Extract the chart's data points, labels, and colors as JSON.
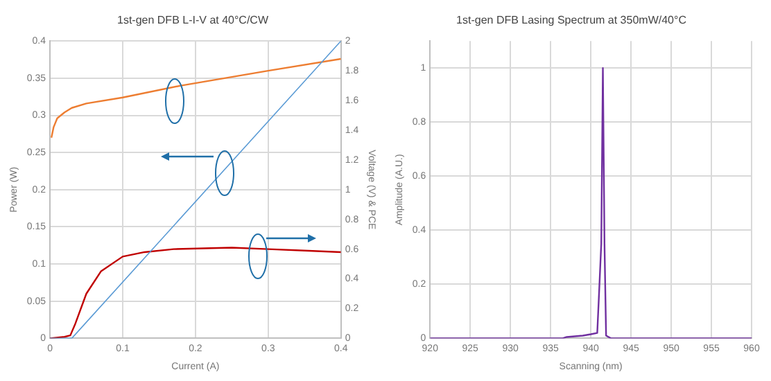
{
  "chart_data": [
    {
      "type": "line",
      "title": "1st-gen DFB L-I-V at 40°C/CW",
      "xlabel": "Current (A)",
      "ylabel": "Power (W)",
      "y2label": "Voltage (V) & PCE",
      "xlim": [
        0,
        0.4
      ],
      "xticks": [
        0,
        0.1,
        0.2,
        0.3,
        0.4
      ],
      "ylim": [
        0,
        0.4
      ],
      "yticks": [
        0,
        0.05,
        0.1,
        0.15,
        0.2,
        0.25,
        0.3,
        0.35,
        0.4
      ],
      "y2lim": [
        0,
        2
      ],
      "y2ticks": [
        0,
        0.2,
        0.4,
        0.6,
        0.8,
        1,
        1.2,
        1.4,
        1.6,
        1.8,
        2
      ],
      "grid": true,
      "legend": false,
      "marker": "none",
      "line_style": "solid",
      "series": [
        {
          "color": "#5b9bd5",
          "x": [
            0,
            0.03,
            0.4
          ],
          "values": [
            0,
            0,
            0.4
          ]
        },
        {
          "color": "#ed7d31",
          "axis": "y2",
          "x": [
            0.002,
            0.005,
            0.01,
            0.02,
            0.03,
            0.05,
            0.1,
            0.18,
            0.24,
            0.3,
            0.4
          ],
          "values": [
            1.35,
            1.42,
            1.48,
            1.52,
            1.55,
            1.58,
            1.62,
            1.7,
            1.75,
            1.8,
            1.88
          ]
        },
        {
          "color": "#c00000",
          "axis": "y2",
          "x": [
            0,
            0.02,
            0.028,
            0.035,
            0.05,
            0.07,
            0.1,
            0.13,
            0.17,
            0.25,
            0.3,
            0.35,
            0.4
          ],
          "values": [
            0,
            0.01,
            0.02,
            0.1,
            0.3,
            0.45,
            0.55,
            0.58,
            0.6,
            0.61,
            0.6,
            0.59,
            0.58
          ]
        }
      ]
    },
    {
      "type": "line",
      "title": "1st-gen DFB Lasing Spectrum at 350mW/40°C",
      "xlabel": "Scanning (nm)",
      "ylabel": "Amplitude (A.U.)",
      "xlim": [
        920,
        960
      ],
      "xticks": [
        920,
        925,
        930,
        935,
        940,
        945,
        950,
        955,
        960
      ],
      "ylim": [
        0,
        1.1
      ],
      "yticks": [
        0,
        0.2,
        0.4,
        0.6,
        0.8,
        1
      ],
      "grid": true,
      "legend": false,
      "marker": "none",
      "line_style": "solid",
      "series": [
        {
          "color": "#7030a0",
          "x": [
            920,
            936.5,
            937,
            939,
            940,
            940.8,
            941,
            941.3,
            941.5,
            941.7,
            941.9,
            942.5,
            960
          ],
          "values": [
            0,
            0,
            0.005,
            0.01,
            0.015,
            0.02,
            0.15,
            0.35,
            1,
            0.35,
            0.01,
            0,
            0
          ]
        }
      ]
    }
  ]
}
